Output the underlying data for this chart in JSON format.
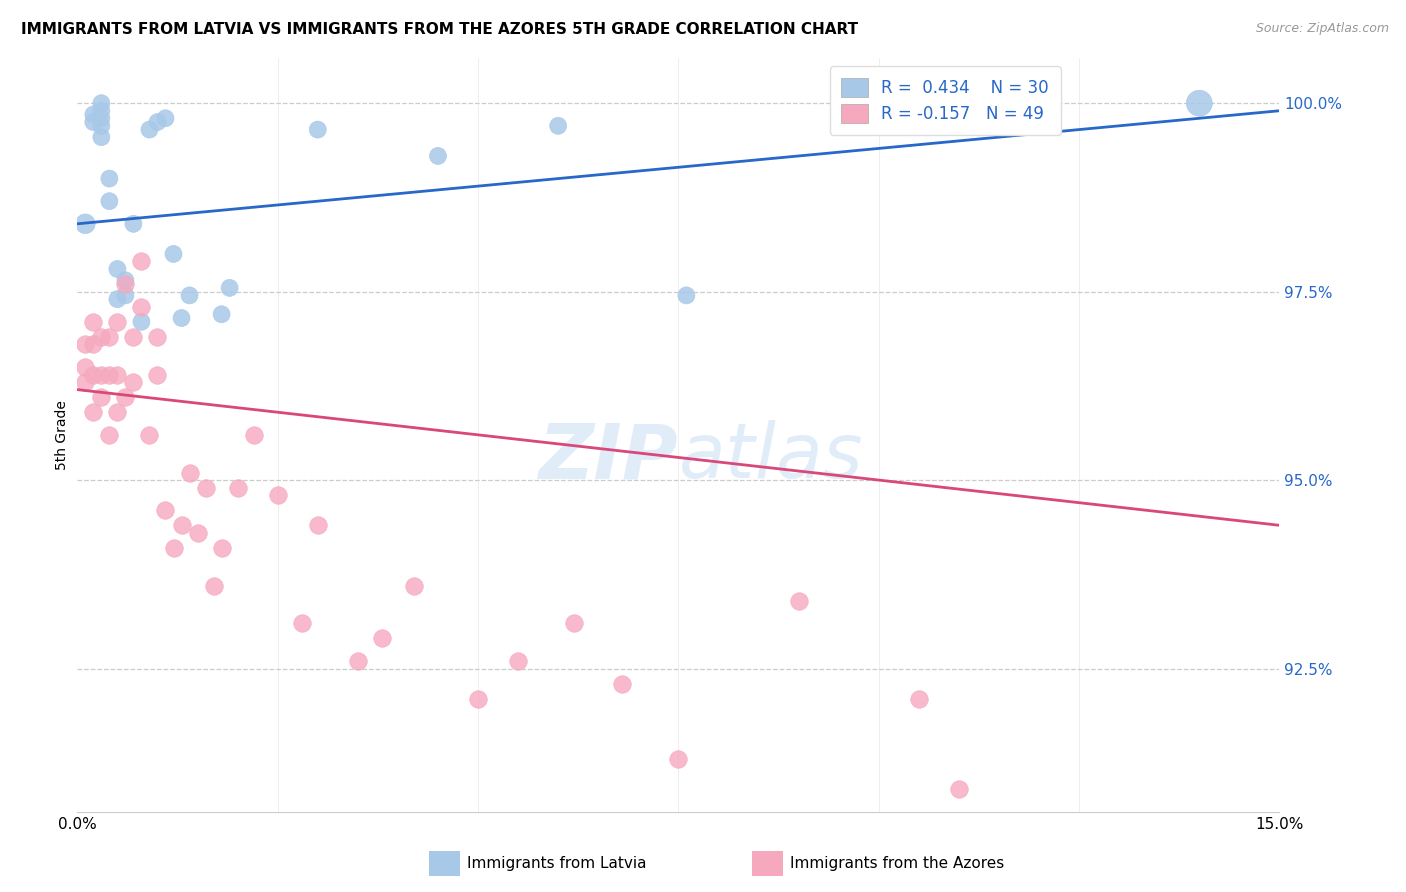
{
  "title": "IMMIGRANTS FROM LATVIA VS IMMIGRANTS FROM THE AZORES 5TH GRADE CORRELATION CHART",
  "source": "Source: ZipAtlas.com",
  "ylabel": "5th Grade",
  "ytick_labels": [
    "92.5%",
    "95.0%",
    "97.5%",
    "100.0%"
  ],
  "ytick_values": [
    0.925,
    0.95,
    0.975,
    1.0
  ],
  "xmin": 0.0,
  "xmax": 0.15,
  "ymin": 0.906,
  "ymax": 1.006,
  "legend_r1": "R =  0.434    N = 30",
  "legend_r2": "R = -0.157   N = 49",
  "color_latvia": "#a8c8e8",
  "color_azores": "#f5a8be",
  "line_color_latvia": "#2868c8",
  "line_color_azores": "#d84878",
  "watermark_zip": "ZIP",
  "watermark_atlas": "atlas",
  "legend_label_latvia": "Immigrants from Latvia",
  "legend_label_azores": "Immigrants from the Azores",
  "latvia_x": [
    0.001,
    0.002,
    0.002,
    0.003,
    0.003,
    0.003,
    0.003,
    0.003,
    0.004,
    0.004,
    0.005,
    0.005,
    0.006,
    0.006,
    0.007,
    0.008,
    0.009,
    0.01,
    0.011,
    0.012,
    0.013,
    0.014,
    0.018,
    0.019,
    0.03,
    0.045,
    0.06,
    0.076,
    0.118,
    0.14
  ],
  "latvia_y": [
    0.984,
    0.9975,
    0.9985,
    0.9955,
    0.997,
    0.998,
    0.999,
    1.0,
    0.987,
    0.99,
    0.974,
    0.978,
    0.9745,
    0.9765,
    0.984,
    0.971,
    0.9965,
    0.9975,
    0.998,
    0.98,
    0.9715,
    0.9745,
    0.972,
    0.9755,
    0.9965,
    0.993,
    0.997,
    0.9745,
    0.999,
    1.0
  ],
  "latvia_size": [
    200,
    150,
    150,
    150,
    150,
    150,
    150,
    150,
    150,
    150,
    150,
    150,
    150,
    150,
    150,
    150,
    150,
    150,
    150,
    150,
    150,
    150,
    150,
    150,
    150,
    150,
    150,
    150,
    150,
    350
  ],
  "azores_x": [
    0.001,
    0.001,
    0.001,
    0.002,
    0.002,
    0.002,
    0.002,
    0.003,
    0.003,
    0.003,
    0.004,
    0.004,
    0.004,
    0.005,
    0.005,
    0.005,
    0.006,
    0.006,
    0.007,
    0.007,
    0.008,
    0.008,
    0.009,
    0.01,
    0.01,
    0.011,
    0.012,
    0.013,
    0.014,
    0.015,
    0.016,
    0.017,
    0.018,
    0.02,
    0.022,
    0.025,
    0.028,
    0.03,
    0.035,
    0.038,
    0.042,
    0.05,
    0.055,
    0.062,
    0.068,
    0.075,
    0.09,
    0.105,
    0.11
  ],
  "azores_y": [
    0.963,
    0.965,
    0.968,
    0.959,
    0.964,
    0.968,
    0.971,
    0.961,
    0.964,
    0.969,
    0.956,
    0.964,
    0.969,
    0.959,
    0.964,
    0.971,
    0.961,
    0.976,
    0.963,
    0.969,
    0.973,
    0.979,
    0.956,
    0.964,
    0.969,
    0.946,
    0.941,
    0.944,
    0.951,
    0.943,
    0.949,
    0.936,
    0.941,
    0.949,
    0.956,
    0.948,
    0.931,
    0.944,
    0.926,
    0.929,
    0.936,
    0.921,
    0.926,
    0.931,
    0.923,
    0.913,
    0.934,
    0.921,
    0.909
  ],
  "latvia_line_x0": 0.0,
  "latvia_line_y0": 0.984,
  "latvia_line_x1": 0.15,
  "latvia_line_y1": 0.999,
  "azores_line_x0": 0.0,
  "azores_line_y0": 0.962,
  "azores_line_x1": 0.15,
  "azores_line_y1": 0.944
}
